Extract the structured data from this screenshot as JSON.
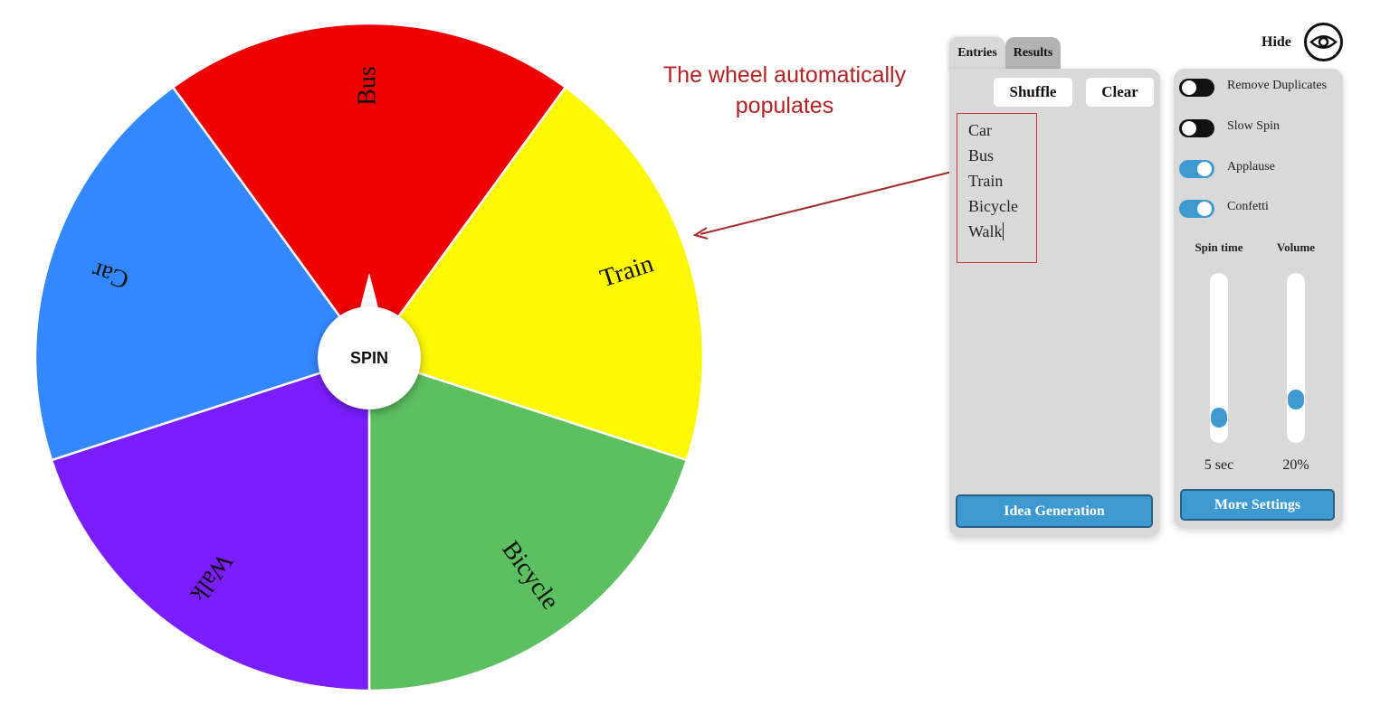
{
  "wheel": {
    "segments": [
      {
        "label": "Bus",
        "color": "#ee0000",
        "start": -36,
        "end": 36
      },
      {
        "label": "Train",
        "color": "#fcf800",
        "start": 36,
        "end": 108
      },
      {
        "label": "Bicycle",
        "color": "#5cbf60",
        "start": 108,
        "end": 180
      },
      {
        "label": "Walk",
        "color": "#7a1eff",
        "start": 180,
        "end": 252
      },
      {
        "label": "Car",
        "color": "#3388ff",
        "start": 252,
        "end": 324
      }
    ],
    "spin_label": "SPIN"
  },
  "annotation": {
    "text_line1": "The wheel automatically",
    "text_line2": "populates"
  },
  "tabs": {
    "entries": "Entries",
    "results": "Results"
  },
  "entries_panel": {
    "shuffle_label": "Shuffle",
    "clear_label": "Clear",
    "entries": [
      "Car",
      "Bus",
      "Train",
      "Bicycle",
      "Walk"
    ],
    "idea_button": "Idea Generation"
  },
  "header": {
    "hide_label": "Hide",
    "eye_icon": "eye-icon"
  },
  "settings": {
    "toggles": [
      {
        "label": "Remove Duplicates",
        "on": false
      },
      {
        "label": "Slow Spin",
        "on": false
      },
      {
        "label": "Applause",
        "on": true
      },
      {
        "label": "Confetti",
        "on": true
      }
    ],
    "spin_time": {
      "title": "Spin time",
      "value": "5 sec",
      "level": 0.1
    },
    "volume": {
      "title": "Volume",
      "value": "20%",
      "level": 0.22
    },
    "more_button": "More Settings"
  }
}
